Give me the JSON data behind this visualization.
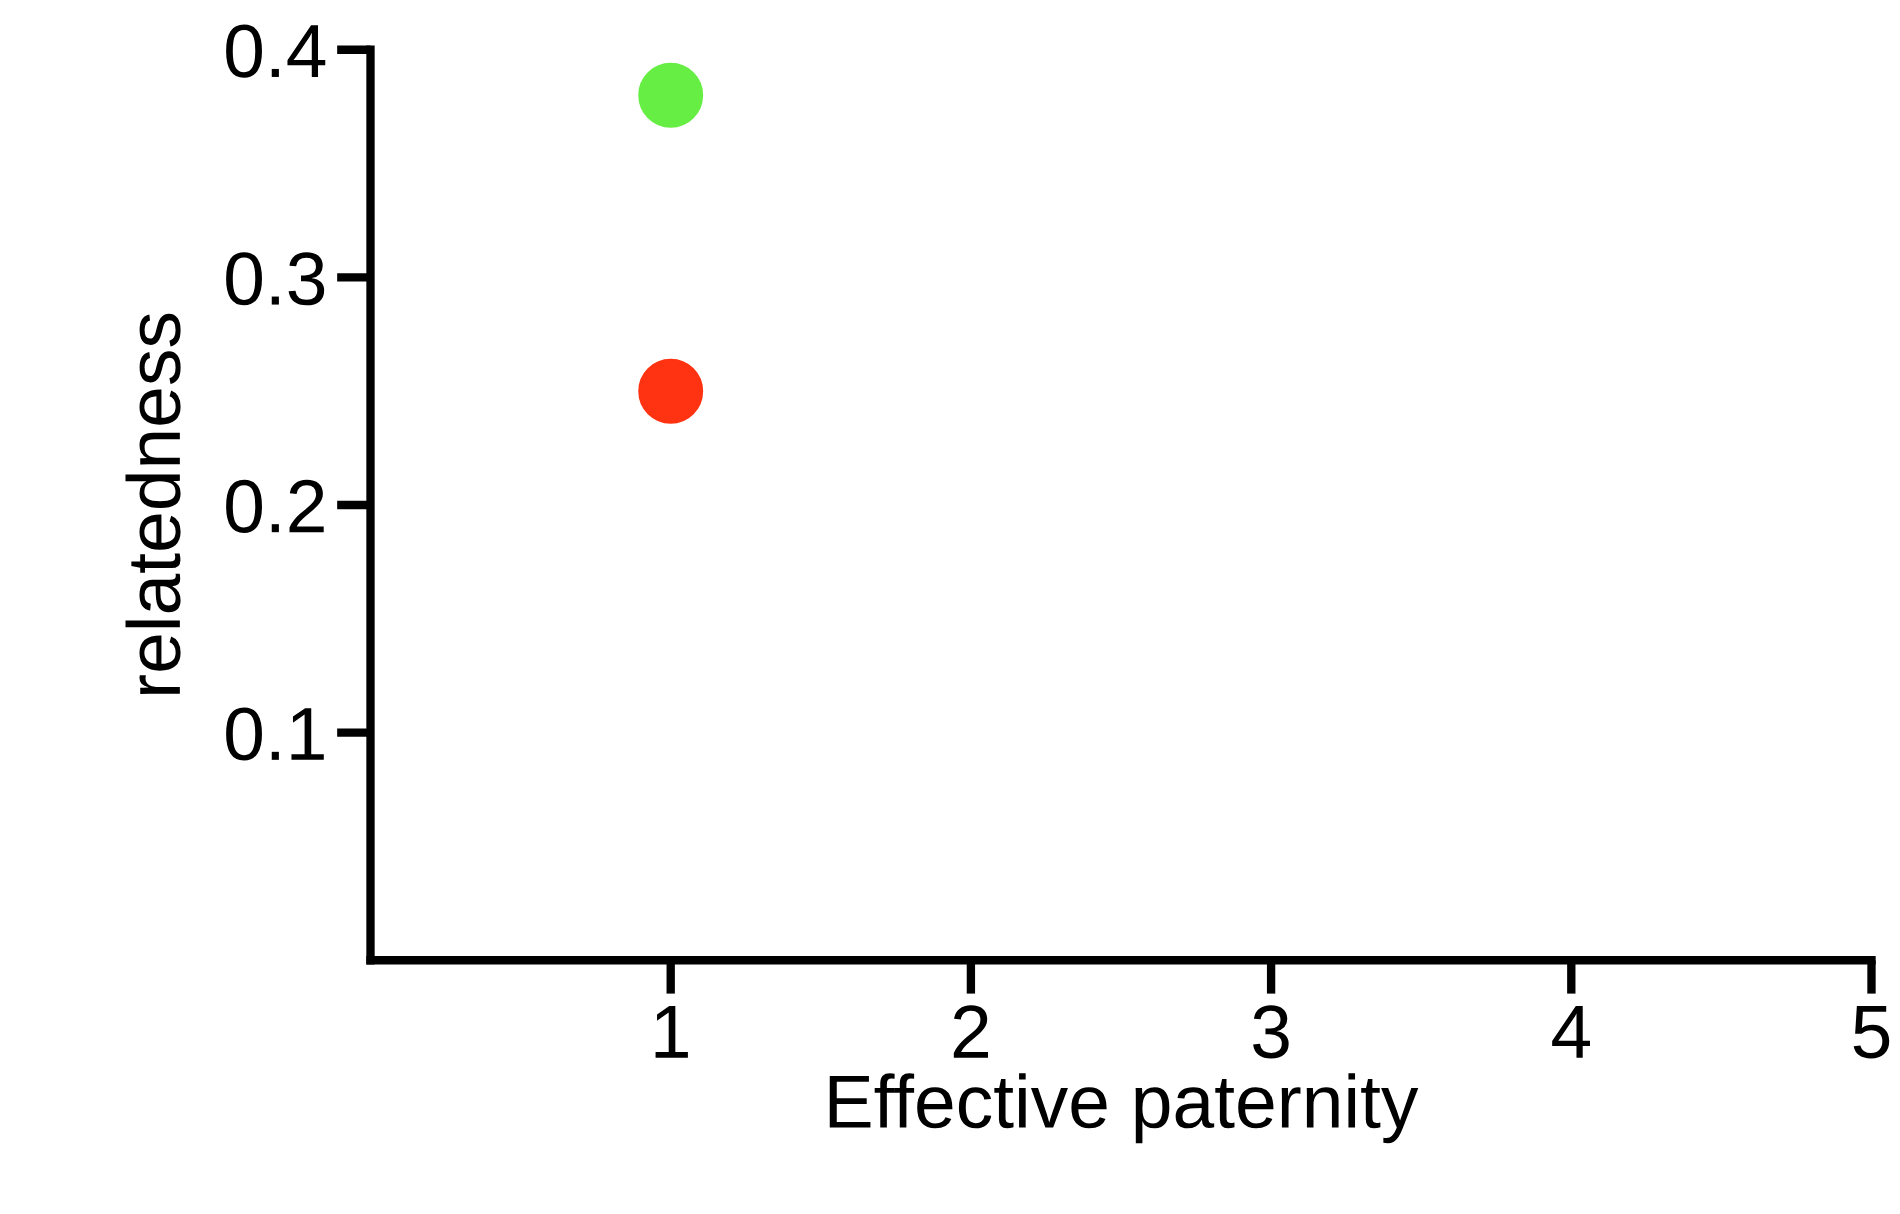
{
  "chart_data": {
    "type": "scatter",
    "xlabel": "Effective paternity",
    "ylabel": "relatedness",
    "x": [
      1,
      1
    ],
    "values": [
      0.38,
      0.25
    ],
    "colors": [
      "#66ee44",
      "#ff3311"
    ],
    "xlim": [
      0,
      5
    ],
    "ylim": [
      0,
      0.4
    ],
    "xticks": [
      1,
      2,
      3,
      4,
      5
    ],
    "yticks": [
      0.1,
      0.2,
      0.3,
      0.4
    ],
    "grid": false,
    "legend": false,
    "marker": "circle"
  }
}
